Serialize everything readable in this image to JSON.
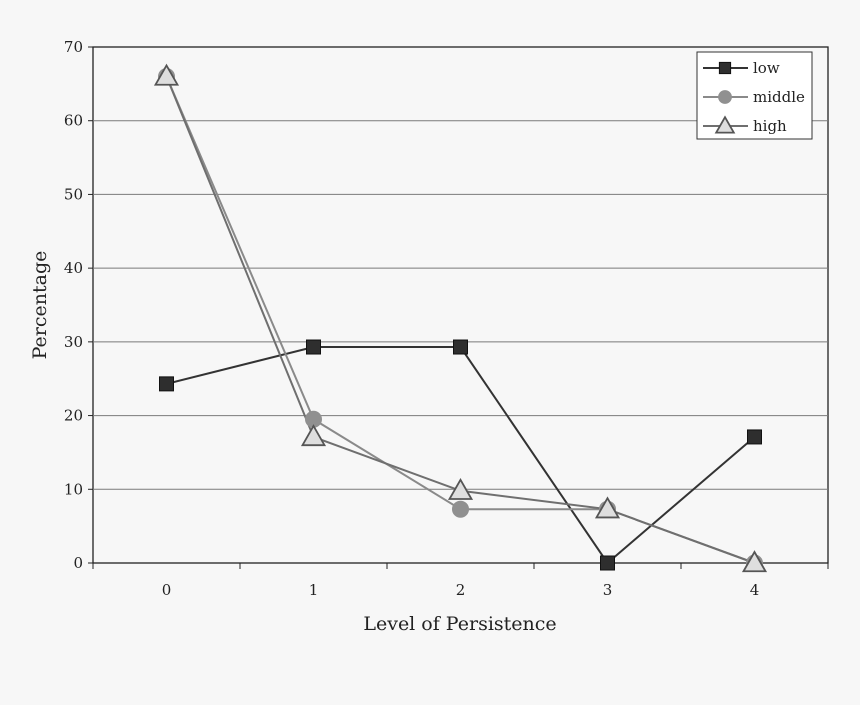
{
  "chart_data": {
    "type": "line",
    "title": "",
    "xlabel": "Level of Persistence",
    "ylabel": "Percentage",
    "categories": [
      "0",
      "1",
      "2",
      "3",
      "4"
    ],
    "ylim": [
      0,
      70
    ],
    "yticks": [
      "0",
      "10",
      "20",
      "30",
      "40",
      "50",
      "60",
      "70"
    ],
    "grid": "horizontal",
    "legend_position": "top-right",
    "series": [
      {
        "name": "low",
        "marker": "square",
        "color": "#333333",
        "values": [
          24.3,
          29.3,
          29.3,
          0.0,
          17.1
        ]
      },
      {
        "name": "middle",
        "marker": "circle",
        "color": "#8a8a8a",
        "values": [
          66.0,
          19.5,
          7.3,
          7.3,
          0.0
        ]
      },
      {
        "name": "high",
        "marker": "triangle",
        "color": "#6f6f6f",
        "values": [
          66.0,
          17.1,
          9.8,
          7.3,
          0.0
        ]
      }
    ]
  }
}
